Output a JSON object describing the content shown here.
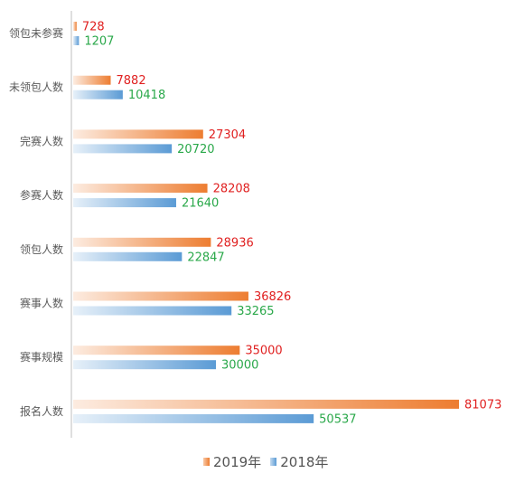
{
  "chart_data": {
    "type": "bar",
    "orientation": "horizontal",
    "categories": [
      "领包未参赛",
      "未领包人数",
      "完赛人数",
      "参赛人数",
      "领包人数",
      "赛事人数",
      "赛事规模",
      "报名人数"
    ],
    "series": [
      {
        "name": "2019年",
        "values": [
          728,
          7882,
          27304,
          28208,
          28936,
          36826,
          35000,
          81073
        ],
        "color": "#ED7D31",
        "label_color": "#E02020"
      },
      {
        "name": "2018年",
        "values": [
          1207,
          10418,
          20720,
          21640,
          22847,
          33265,
          30000,
          50537
        ],
        "color": "#5B9BD5",
        "label_color": "#2AA84A"
      }
    ],
    "legend_position": "bottom",
    "grid": false
  }
}
